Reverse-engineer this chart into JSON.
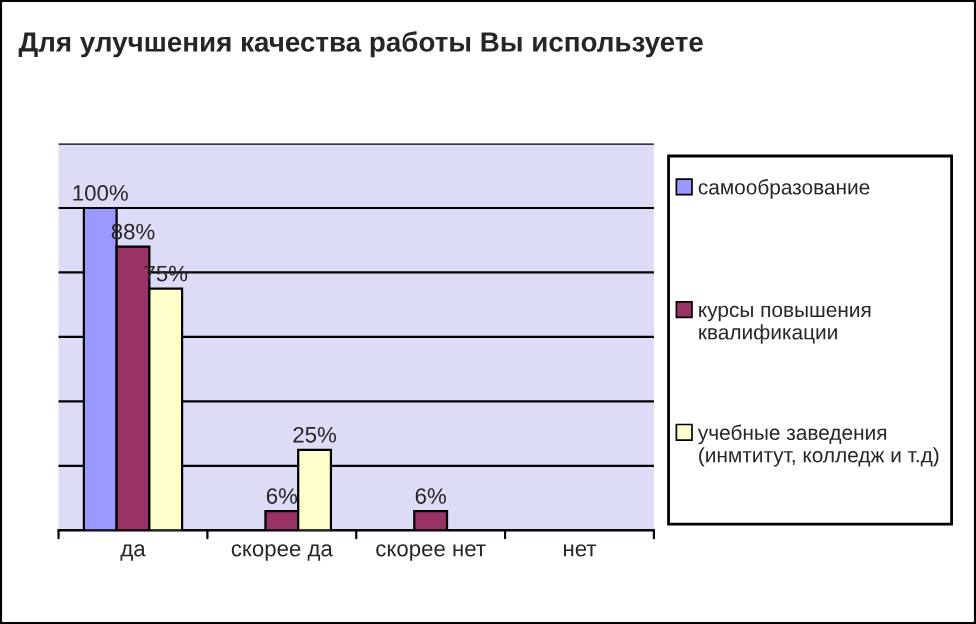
{
  "chart_data": {
    "type": "bar",
    "title": "Для улучшения качества работы Вы используете",
    "categories": [
      "да",
      "скорее да",
      "скорее нет",
      "нет"
    ],
    "series": [
      {
        "name": "самообразование",
        "color": "#9999ff",
        "values": [
          100,
          null,
          null,
          null
        ],
        "value_labels": [
          "100%",
          null,
          null,
          null
        ]
      },
      {
        "name": "курсы повышения квалификации",
        "color": "#993366",
        "values": [
          88,
          6,
          6,
          null
        ],
        "value_labels": [
          "88%",
          "6%",
          "6%",
          null
        ]
      },
      {
        "name": "учебные заведения (инмтитут, колледж и т.д)",
        "color": "#ffffcc",
        "values": [
          75,
          25,
          null,
          null
        ],
        "value_labels": [
          "75%",
          "25%",
          null,
          null
        ]
      }
    ],
    "ylim": [
      0,
      120
    ],
    "yticks": [
      {
        "value": 0,
        "label": null
      },
      {
        "value": 20,
        "label": null
      },
      {
        "value": 40,
        "label": null
      },
      {
        "value": 60,
        "label": null
      },
      {
        "value": 80,
        "label": null
      },
      {
        "value": 100,
        "label": null
      },
      {
        "value": 120,
        "label": null
      }
    ],
    "grid": "y",
    "legend": "right",
    "tick_labels": "x"
  }
}
